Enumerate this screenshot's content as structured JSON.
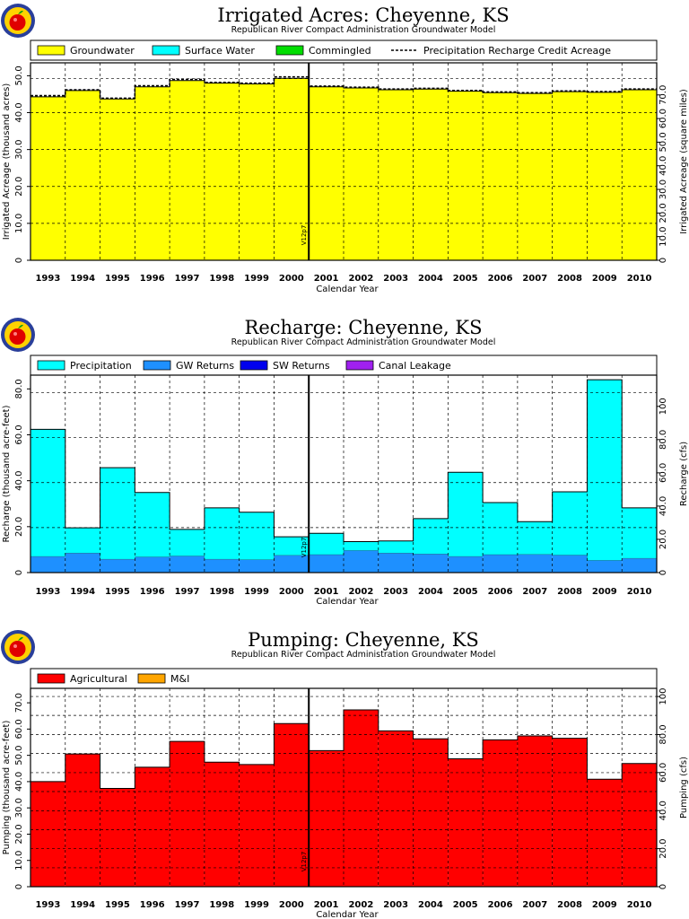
{
  "charts_common": {
    "subtitle": "Republican River Compact Administration Groundwater Model",
    "xlabel": "Calendar Year",
    "marker_label": "V12p7"
  },
  "chart_data": [
    {
      "id": "acres",
      "type": "area",
      "title": "Irrigated Acres: Cheyenne, KS",
      "subtitle": "Republican River Compact Administration Groundwater Model",
      "xlabel": "Calendar Year",
      "ylabel": "Irrigated Acreage (thousand acres)",
      "y2label": "Irrigated Acreage (square miles)",
      "categories": [
        "1993",
        "1994",
        "1995",
        "1996",
        "1997",
        "1998",
        "1999",
        "2000",
        "2001",
        "2002",
        "2003",
        "2004",
        "2005",
        "2006",
        "2007",
        "2008",
        "2009",
        "2010"
      ],
      "ylim": [
        0,
        53.5
      ],
      "yticks": [
        0,
        10,
        20,
        30,
        40,
        50
      ],
      "ytick_labels": [
        "0",
        "10.0",
        "20.0",
        "30.0",
        "40.0",
        "50.0"
      ],
      "y2lim": [
        0,
        83.6
      ],
      "y2ticks": [
        0,
        10,
        20,
        30,
        40,
        50,
        60,
        70
      ],
      "y2tick_labels": [
        "0",
        "10.0",
        "20.0",
        "30.0",
        "40.0",
        "50.0",
        "60.0",
        "70.0"
      ],
      "hgrid": [
        10,
        20,
        30,
        40,
        49.2
      ],
      "legend": [
        {
          "label": "Groundwater",
          "color": "#ffff00",
          "kind": "box"
        },
        {
          "label": "Surface Water",
          "color": "#00ffff",
          "kind": "box"
        },
        {
          "label": "Commingled",
          "color": "#00dd00",
          "kind": "box"
        },
        {
          "label": "Precipitation Recharge Credit Acreage",
          "color": "#000000",
          "kind": "dash"
        }
      ],
      "series": [
        {
          "name": "Groundwater",
          "color": "#ffff00",
          "values": [
            44.3,
            46.0,
            43.7,
            47.0,
            48.7,
            48.0,
            47.8,
            49.3,
            47.0,
            46.7,
            46.2,
            46.4,
            45.8,
            45.4,
            45.2,
            45.7,
            45.5,
            46.2
          ]
        },
        {
          "name": "Surface Water",
          "color": "#00ffff",
          "values": [
            0,
            0,
            0,
            0,
            0,
            0,
            0,
            0,
            0,
            0,
            0,
            0,
            0,
            0,
            0,
            0,
            0,
            0
          ]
        },
        {
          "name": "Commingled",
          "color": "#00dd00",
          "values": [
            0,
            0,
            0,
            0,
            0,
            0,
            0,
            0,
            0,
            0,
            0,
            0,
            0,
            0,
            0,
            0,
            0,
            0
          ]
        }
      ],
      "dashed_line": {
        "name": "Precipitation Recharge Credit Acreage",
        "values": [
          44.6,
          46.2,
          43.9,
          47.3,
          49.0,
          48.2,
          48.0,
          49.7,
          47.2,
          46.9,
          46.4,
          46.6,
          46.0,
          45.6,
          45.4,
          45.9,
          45.7,
          46.4
        ]
      },
      "marker_year_index": 7.5
    },
    {
      "id": "recharge",
      "type": "area",
      "title": "Recharge: Cheyenne, KS",
      "subtitle": "Republican River Compact Administration Groundwater Model",
      "xlabel": "Calendar Year",
      "ylabel": "Recharge (thousand acre-feet)",
      "y2label": "Recharge (cfs)",
      "categories": [
        "1993",
        "1994",
        "1995",
        "1996",
        "1997",
        "1998",
        "1999",
        "2000",
        "2001",
        "2002",
        "2003",
        "2004",
        "2005",
        "2006",
        "2007",
        "2008",
        "2009",
        "2010"
      ],
      "ylim": [
        0,
        86
      ],
      "yticks": [
        0,
        20,
        40,
        60,
        80
      ],
      "ytick_labels": [
        "0",
        "20.0",
        "40.0",
        "60.0",
        "80.0"
      ],
      "y2lim": [
        0,
        118.8
      ],
      "y2ticks": [
        0,
        20,
        40,
        60,
        80,
        100
      ],
      "y2tick_labels": [
        "0",
        "20.0",
        "40.0",
        "60.0",
        "80.0",
        "100"
      ],
      "hgrid": [
        19.6,
        39.2,
        58.8,
        78.4
      ],
      "legend": [
        {
          "label": "Precipitation",
          "color": "#00ffff",
          "kind": "box"
        },
        {
          "label": "GW Returns",
          "color": "#1e90ff",
          "kind": "box"
        },
        {
          "label": "SW Returns",
          "color": "#0000ee",
          "kind": "box"
        },
        {
          "label": "Canal Leakage",
          "color": "#a020f0",
          "kind": "box"
        }
      ],
      "series": [
        {
          "name": "GW Returns",
          "color": "#1e90ff",
          "values": [
            7.0,
            8.5,
            5.8,
            6.8,
            7.2,
            5.8,
            5.6,
            7.5,
            7.8,
            9.6,
            8.5,
            8.1,
            7.0,
            7.8,
            7.9,
            7.6,
            5.3,
            6.2
          ]
        },
        {
          "name": "Precipitation",
          "color": "#00ffff",
          "values": [
            55.4,
            11.0,
            39.9,
            28.1,
            11.6,
            22.4,
            20.7,
            8.1,
            9.3,
            3.9,
            5.3,
            15.4,
            36.7,
            22.7,
            14.3,
            27.6,
            78.7,
            22.0
          ]
        },
        {
          "name": "SW Returns",
          "color": "#0000ee",
          "values": [
            0,
            0,
            0,
            0,
            0,
            0,
            0,
            0,
            0,
            0,
            0,
            0,
            0,
            0,
            0,
            0,
            0,
            0
          ]
        },
        {
          "name": "Canal Leakage",
          "color": "#a020f0",
          "values": [
            0,
            0,
            0,
            0,
            0,
            0,
            0,
            0,
            0,
            0,
            0,
            0,
            0,
            0,
            0,
            0,
            0,
            0
          ]
        }
      ],
      "marker_year_index": 7.5
    },
    {
      "id": "pumping",
      "type": "area",
      "title": "Pumping: Cheyenne, KS",
      "subtitle": "Republican River Compact Administration Groundwater Model",
      "xlabel": "Calendar Year",
      "ylabel": "Pumping (thousand acre-feet)",
      "y2label": "Pumping (cfs)",
      "categories": [
        "1993",
        "1994",
        "1995",
        "1996",
        "1997",
        "1998",
        "1999",
        "2000",
        "2001",
        "2002",
        "2003",
        "2004",
        "2005",
        "2006",
        "2007",
        "2008",
        "2009",
        "2010"
      ],
      "ylim": [
        0,
        75.5
      ],
      "yticks": [
        0,
        10,
        20,
        30,
        40,
        50,
        60,
        70
      ],
      "ytick_labels": [
        "0",
        "10.0",
        "20.0",
        "30.0",
        "40.0",
        "50.0",
        "60.0",
        "70.0"
      ],
      "y2lim": [
        0,
        104.3
      ],
      "y2ticks": [
        0,
        20,
        40,
        60,
        80,
        100
      ],
      "y2tick_labels": [
        "0",
        "20.0",
        "40.0",
        "60.0",
        "80.0",
        "100"
      ],
      "hgrid": [
        7.2,
        14.5,
        21.7,
        28.9,
        36.2,
        43.4,
        50.7,
        57.9,
        65.2,
        72.4
      ],
      "hgrid_right_only": [
        14.5,
        28.9,
        43.4,
        57.9
      ],
      "legend": [
        {
          "label": "Agricultural",
          "color": "#ff0000",
          "kind": "box"
        },
        {
          "label": "M&I",
          "color": "#ffa500",
          "kind": "box"
        }
      ],
      "series": [
        {
          "name": "Agricultural",
          "color": "#ff0000",
          "values": [
            40.0,
            50.5,
            37.4,
            45.5,
            55.3,
            47.4,
            46.5,
            62.1,
            51.8,
            67.3,
            59.3,
            56.3,
            48.7,
            55.9,
            57.4,
            56.5,
            40.9,
            46.9
          ]
        },
        {
          "name": "M&I",
          "color": "#ffa500",
          "values": [
            0,
            0,
            0,
            0,
            0,
            0,
            0,
            0,
            0,
            0,
            0,
            0,
            0,
            0,
            0,
            0,
            0,
            0
          ]
        }
      ],
      "marker_year_index": 7.5
    }
  ]
}
